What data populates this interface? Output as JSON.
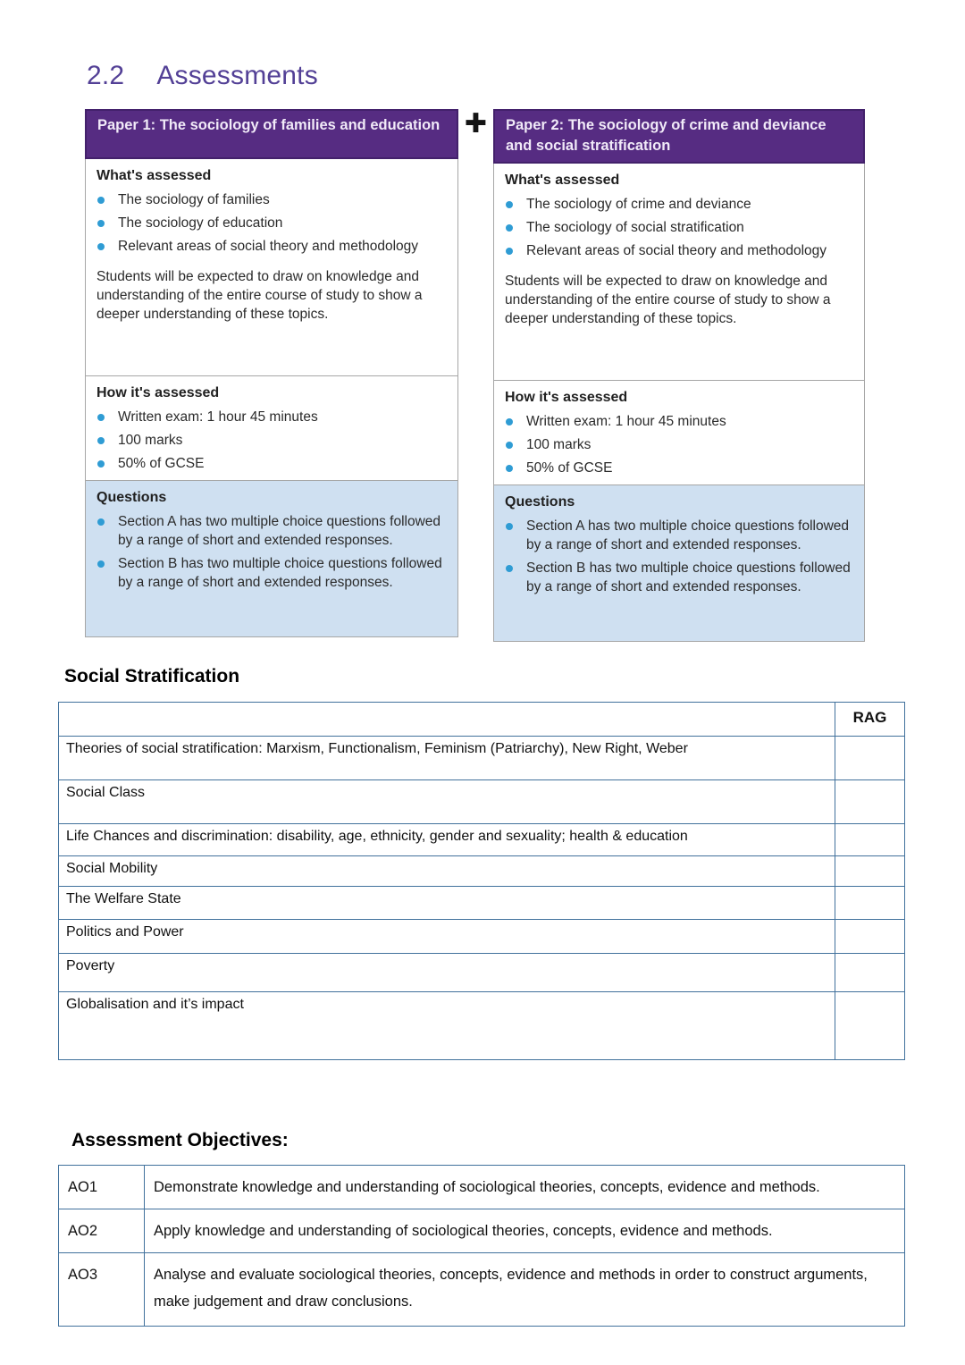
{
  "page": {
    "section_number": "2.2",
    "section_title": "Assessments"
  },
  "plus_icon": "✚",
  "papers": [
    {
      "title": "Paper 1: The sociology of families and education",
      "whats_assessed": {
        "heading": "What's assessed",
        "bullets": [
          "The sociology of families",
          "The sociology of education",
          "Relevant areas of social theory and methodology"
        ],
        "note": "Students will be expected to draw on knowledge and understanding of the entire course of study to show a deeper understanding of these topics."
      },
      "how_assessed": {
        "heading": "How it's assessed",
        "bullets": [
          "Written exam: 1 hour 45 minutes",
          "100 marks",
          "50% of GCSE"
        ]
      },
      "questions": {
        "heading": "Questions",
        "bullets": [
          "Section A has two multiple choice questions followed by a range of short and extended responses.",
          "Section B has two multiple choice questions followed by a range of short and extended responses."
        ]
      }
    },
    {
      "title": "Paper 2: The sociology of crime and deviance and social stratification",
      "whats_assessed": {
        "heading": "What's assessed",
        "bullets": [
          "The sociology of crime and deviance",
          "The sociology of social stratification",
          "Relevant areas of social theory and methodology"
        ],
        "note": "Students will be expected to draw on knowledge and understanding of the entire course of study to show a deeper understanding of these topics."
      },
      "how_assessed": {
        "heading": "How it's assessed",
        "bullets": [
          "Written exam: 1 hour 45 minutes",
          "100 marks",
          "50% of GCSE"
        ]
      },
      "questions": {
        "heading": "Questions",
        "bullets": [
          "Section A has two multiple choice questions followed by a range of short and extended responses.",
          "Section B has two multiple choice questions followed by a range of short and extended responses."
        ]
      }
    }
  ],
  "stratification": {
    "heading": "Social Stratification",
    "rag_header": "RAG",
    "rows": [
      "Theories of social stratification: Marxism, Functionalism,  Feminism (Patriarchy), New Right, Weber",
      "Social Class",
      "Life Chances and discrimination: disability, age, ethnicity, gender and sexuality; health & education",
      "Social Mobility",
      "The Welfare State",
      "Politics and Power",
      "Poverty",
      "Globalisation and it’s impact"
    ]
  },
  "assessment_objectives": {
    "heading": "Assessment Objectives:",
    "rows": [
      {
        "code": "AO1",
        "text": "Demonstrate knowledge and understanding of sociological theories, concepts, evidence and methods."
      },
      {
        "code": "AO2",
        "text": "Apply knowledge and understanding of sociological theories, concepts, evidence and methods."
      },
      {
        "code": "AO3",
        "text": "Analyse and evaluate sociological theories, concepts, evidence and methods in order to construct arguments, make judgement and draw conclusions."
      }
    ]
  },
  "colors": {
    "brand_purple": "#562c82",
    "heading_purple": "#534096",
    "bullet_blue": "#2f9cd4",
    "questions_bg": "#cfe0f1",
    "table_border_blue": "#41719c"
  }
}
